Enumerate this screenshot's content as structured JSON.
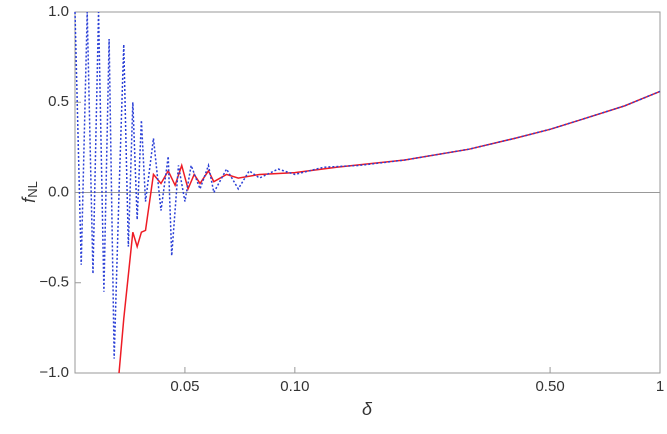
{
  "chart_data": {
    "type": "line",
    "xlabel": "δ",
    "ylabel": {
      "text": "f",
      "subscript": "NL"
    },
    "xscale": "log",
    "xlim": [
      0.025,
      1
    ],
    "ylim": [
      -1,
      1
    ],
    "xticks": [
      0.05,
      {
        "value": 0.1,
        "label": "0.10"
      },
      {
        "value": 0.5,
        "label": "0.50"
      },
      1
    ],
    "yticks": [
      {
        "value": -1,
        "label": "−1.0"
      },
      {
        "value": -0.5,
        "label": "−0.5"
      },
      {
        "value": 0,
        "label": "0.0"
      },
      {
        "value": 0.5,
        "label": "0.5"
      },
      {
        "value": 1,
        "label": "1.0"
      }
    ],
    "zero_line_color": "#999999",
    "series": [
      {
        "color": "#ee1c25",
        "dash": "solid",
        "x": [
          0.033,
          0.034,
          0.036,
          0.037,
          0.038,
          0.039,
          0.041,
          0.043,
          0.045,
          0.047,
          0.049,
          0.051,
          0.053,
          0.055,
          0.058,
          0.06,
          0.065,
          0.07,
          0.08,
          0.1,
          0.13,
          0.2,
          0.3,
          0.4,
          0.5,
          0.6,
          0.8,
          1
        ],
        "values": [
          -1.0,
          -0.7,
          -0.22,
          -0.3,
          -0.22,
          -0.21,
          0.1,
          0.05,
          0.12,
          0.04,
          0.15,
          0.02,
          0.1,
          0.05,
          0.12,
          0.06,
          0.1,
          0.08,
          0.1,
          0.11,
          0.14,
          0.18,
          0.24,
          0.3,
          0.35,
          0.4,
          0.48,
          0.56
        ]
      },
      {
        "color": "#2a3fd6",
        "dash": "dotted",
        "x": [
          0.025,
          0.026,
          0.027,
          0.028,
          0.029,
          0.03,
          0.031,
          0.032,
          0.033,
          0.034,
          0.035,
          0.036,
          0.037,
          0.038,
          0.039,
          0.041,
          0.043,
          0.045,
          0.046,
          0.048,
          0.05,
          0.052,
          0.055,
          0.058,
          0.06,
          0.065,
          0.07,
          0.075,
          0.08,
          0.09,
          0.1,
          0.12,
          0.15,
          0.2,
          0.3,
          0.4,
          0.5,
          0.6,
          0.8,
          1
        ],
        "values": [
          1.0,
          -0.4,
          1.0,
          -0.45,
          1.0,
          -0.55,
          0.85,
          -0.92,
          0.0,
          0.82,
          -0.3,
          0.5,
          -0.15,
          0.4,
          -0.05,
          0.3,
          -0.1,
          0.2,
          -0.35,
          0.15,
          -0.05,
          0.15,
          0.02,
          0.15,
          0.0,
          0.13,
          0.02,
          0.12,
          0.08,
          0.13,
          0.1,
          0.14,
          0.15,
          0.18,
          0.24,
          0.3,
          0.35,
          0.4,
          0.48,
          0.56
        ]
      }
    ]
  }
}
